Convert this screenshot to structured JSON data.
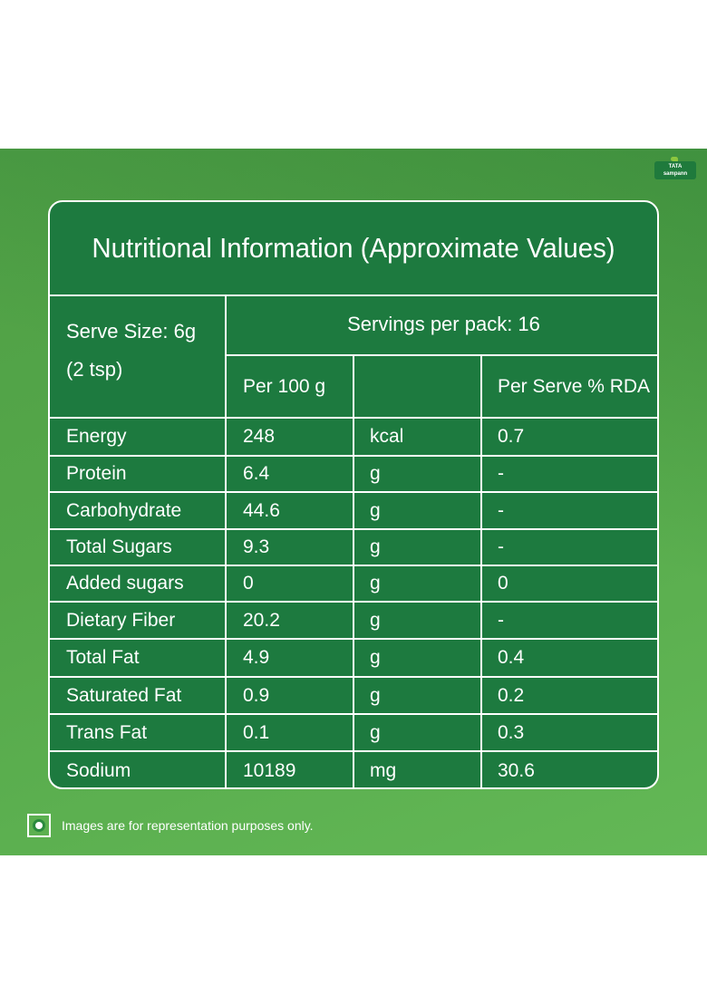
{
  "brand": {
    "logo_line1": "TATA",
    "logo_line2": "sampann"
  },
  "table": {
    "title": "Nutritional Information (Approximate Values)",
    "serve_size_line1": "Serve Size: 6g",
    "serve_size_line2": "(2 tsp)",
    "servings_per_pack": "Servings per pack: 16",
    "col_per100": "Per 100 g",
    "col_unit": "",
    "col_rda": "Per Serve % RDA",
    "rows": [
      {
        "nutrient": "Energy",
        "per100": "248",
        "unit": "kcal",
        "rda": "0.7"
      },
      {
        "nutrient": "Protein",
        "per100": "6.4",
        "unit": "g",
        "rda": "-"
      },
      {
        "nutrient": "Carbohydrate",
        "per100": "44.6",
        "unit": "g",
        "rda": "-"
      },
      {
        "nutrient": "Total Sugars",
        "per100": "9.3",
        "unit": "g",
        "rda": "-"
      },
      {
        "nutrient": "Added sugars",
        "per100": "0",
        "unit": "g",
        "rda": "0"
      },
      {
        "nutrient": "Dietary Fiber",
        "per100": "20.2",
        "unit": "g",
        "rda": "-"
      },
      {
        "nutrient": "Total Fat",
        "per100": "4.9",
        "unit": "g",
        "rda": "0.4"
      },
      {
        "nutrient": "Saturated Fat",
        "per100": "0.9",
        "unit": "g",
        "rda": "0.2"
      },
      {
        "nutrient": "Trans Fat",
        "per100": "0.1",
        "unit": "g",
        "rda": "0.3"
      },
      {
        "nutrient": "Sodium",
        "per100": "10189",
        "unit": "mg",
        "rda": "30.6"
      }
    ]
  },
  "footer": {
    "disclaimer": "Images are for representation purposes only.",
    "veg_mark_icon": "veg-symbol-icon"
  },
  "colors": {
    "panel_green": "#55a84a",
    "table_green": "#1d7a3f",
    "lines": "#ffffff"
  }
}
